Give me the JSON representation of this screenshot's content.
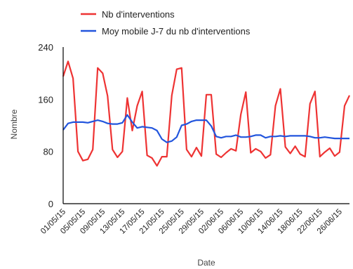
{
  "chart_data": {
    "type": "line",
    "title": "",
    "xlabel": "Date",
    "ylabel": "Nombre",
    "ylim": [
      0,
      240
    ],
    "yticks": [
      0,
      80,
      160,
      240
    ],
    "grid": false,
    "legend_position": "top",
    "x_tick_labels": [
      "01/05/15",
      "05/05/15",
      "09/05/15",
      "13/05/15",
      "17/05/15",
      "21/05/15",
      "25/05/15",
      "29/05/15",
      "02/06/15",
      "06/06/15",
      "10/06/15",
      "14/06/15",
      "18/06/15",
      "22/06/15",
      "26/06/15"
    ],
    "x": [
      "01/05/15",
      "02/05/15",
      "03/05/15",
      "04/05/15",
      "05/05/15",
      "06/05/15",
      "07/05/15",
      "08/05/15",
      "09/05/15",
      "10/05/15",
      "11/05/15",
      "12/05/15",
      "13/05/15",
      "14/05/15",
      "15/05/15",
      "16/05/15",
      "17/05/15",
      "18/05/15",
      "19/05/15",
      "20/05/15",
      "21/05/15",
      "22/05/15",
      "23/05/15",
      "24/05/15",
      "25/05/15",
      "26/05/15",
      "27/05/15",
      "28/05/15",
      "29/05/15",
      "30/05/15",
      "31/05/15",
      "01/06/15",
      "02/06/15",
      "03/06/15",
      "04/06/15",
      "05/06/15",
      "06/06/15",
      "07/06/15",
      "08/06/15",
      "09/06/15",
      "10/06/15",
      "11/06/15",
      "12/06/15",
      "13/06/15",
      "14/06/15",
      "15/06/15",
      "16/06/15",
      "17/06/15",
      "18/06/15",
      "19/06/15",
      "20/06/15",
      "21/06/15",
      "22/06/15",
      "23/06/15",
      "24/06/15",
      "25/06/15",
      "26/06/15",
      "27/06/15",
      "28/06/15"
    ],
    "series": [
      {
        "name": "Nb d'interventions",
        "color": "#ee3333",
        "values": [
          195,
          218,
          192,
          80,
          66,
          68,
          83,
          208,
          200,
          165,
          83,
          71,
          80,
          162,
          112,
          150,
          172,
          74,
          70,
          58,
          72,
          72,
          166,
          206,
          208,
          83,
          72,
          86,
          73,
          167,
          167,
          76,
          71,
          78,
          84,
          81,
          137,
          171,
          78,
          84,
          80,
          70,
          75,
          150,
          176,
          87,
          77,
          88,
          76,
          72,
          153,
          172,
          72,
          79,
          85,
          73,
          79,
          150,
          166
        ],
        "labels_visible": false
      },
      {
        "name": "Moy mobile J-7 du nb d'interventions",
        "color": "#2255dd",
        "values": [
          113,
          123,
          125,
          125,
          125,
          124,
          126,
          128,
          126,
          123,
          122,
          122,
          124,
          136,
          125,
          116,
          118,
          117,
          116,
          112,
          99,
          94,
          96,
          102,
          120,
          122,
          126,
          128,
          128,
          128,
          119,
          103,
          101,
          103,
          103,
          105,
          102,
          102,
          103,
          105,
          105,
          101,
          103,
          103,
          104,
          103,
          104,
          104,
          104,
          104,
          103,
          101,
          101,
          102,
          101,
          100,
          100,
          100,
          100
        ]
      }
    ]
  }
}
